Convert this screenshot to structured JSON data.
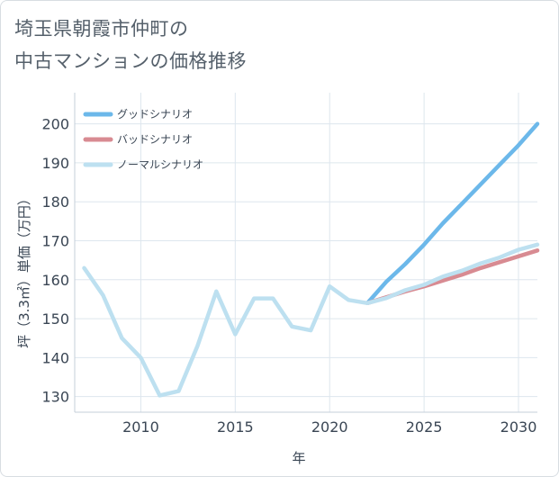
{
  "title": {
    "line1": "埼玉県朝霞市仲町の",
    "line2": "中古マンションの価格推移"
  },
  "colors": {
    "good": "#6cb8ea",
    "bad": "#d88b92",
    "normal": "#bde0f0",
    "grid": "#dde6ee",
    "axis": "#c5cfd9",
    "text": "#3a4654"
  },
  "chart_data": {
    "type": "line",
    "title": "埼玉県朝霞市仲町の中古マンションの価格推移",
    "xlabel": "年",
    "ylabel": "坪（3.3㎡）単価（万円）",
    "xlim": [
      2006.5,
      2031
    ],
    "ylim": [
      126,
      208
    ],
    "x_ticks": [
      2010,
      2015,
      2020,
      2025,
      2030
    ],
    "y_ticks": [
      130,
      140,
      150,
      160,
      170,
      180,
      190,
      200
    ],
    "grid": true,
    "legend_position": "top-left",
    "series": [
      {
        "key": "good",
        "name": "グッドシナリオ",
        "x": [
          2022,
          2023,
          2024,
          2025,
          2026,
          2027,
          2028,
          2029,
          2030,
          2031
        ],
        "values": [
          154,
          159.5,
          164,
          169,
          174.5,
          179.5,
          184.5,
          189.5,
          194.5,
          200
        ]
      },
      {
        "key": "bad",
        "name": "バッドシナリオ",
        "x": [
          2022,
          2023,
          2024,
          2025,
          2026,
          2027,
          2028,
          2029,
          2030,
          2031
        ],
        "values": [
          154,
          155.5,
          157,
          158.3,
          159.8,
          161.3,
          163,
          164.5,
          166,
          167.5
        ]
      },
      {
        "key": "normal",
        "name": "ノーマルシナリオ",
        "x": [
          2007,
          2008,
          2009,
          2010,
          2011,
          2012,
          2013,
          2014,
          2015,
          2016,
          2017,
          2018,
          2019,
          2020,
          2021,
          2022,
          2023,
          2024,
          2025,
          2026,
          2027,
          2028,
          2029,
          2030,
          2031
        ],
        "values": [
          163,
          156,
          145,
          140,
          130.3,
          131.4,
          143,
          157,
          146,
          155.2,
          155.2,
          148,
          147,
          158.3,
          154.8,
          154,
          155.3,
          157.3,
          158.7,
          160.8,
          162.3,
          164.2,
          165.7,
          167.7,
          169
        ]
      }
    ]
  }
}
